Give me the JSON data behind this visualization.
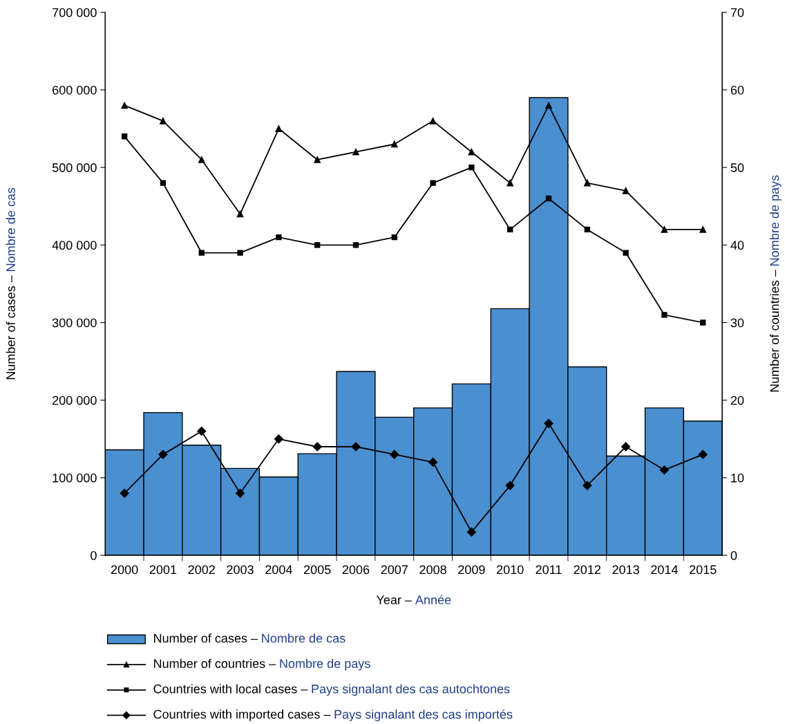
{
  "chart_data": {
    "type": "bar",
    "xlabel": "Year – Année",
    "ylabel": "Number of cases – Nombre de cas",
    "y2label": "Number of countries – Nombre de pays",
    "categories": [
      "2000",
      "2001",
      "2002",
      "2003",
      "2004",
      "2005",
      "2006",
      "2007",
      "2008",
      "2009",
      "2010",
      "2011",
      "2012",
      "2013",
      "2014",
      "2015"
    ],
    "series": [
      {
        "name": "Number of cases – Nombre de cas",
        "color": "#4a8fd0",
        "values": [
          136000,
          184000,
          142000,
          112000,
          101000,
          131000,
          237000,
          178000,
          190000,
          221000,
          318000,
          590000,
          243000,
          128000,
          190000,
          173000
        ]
      },
      {
        "name": "Number of countries – Nombre de pays",
        "type": "line",
        "axis": "y2",
        "color": "#000000",
        "marker": "triangle",
        "values": [
          58,
          56,
          51,
          44,
          55,
          51,
          52,
          53,
          56,
          52,
          48,
          58,
          48,
          47,
          42,
          42
        ]
      },
      {
        "name": "Countries with local cases – Pays signalant des cas autochtones",
        "type": "line",
        "axis": "y2",
        "color": "#000000",
        "marker": "square",
        "values": [
          54,
          48,
          39,
          39,
          41,
          40,
          40,
          41,
          48,
          50,
          42,
          46,
          42,
          39,
          31,
          30
        ]
      },
      {
        "name": "Countries with imported cases – Pays signalant des cas importés",
        "type": "line",
        "axis": "y2",
        "color": "#000000",
        "marker": "diamond",
        "values": [
          8,
          13,
          16,
          8,
          15,
          14,
          14,
          13,
          12,
          3,
          9,
          17,
          9,
          14,
          11,
          13
        ]
      }
    ],
    "ylim": [
      0,
      700000
    ],
    "yticks": [
      {
        "value": 0,
        "label": "0"
      },
      {
        "value": 100000,
        "label": "100 000"
      },
      {
        "value": 200000,
        "label": "200 000"
      },
      {
        "value": 300000,
        "label": "300 000"
      },
      {
        "value": 400000,
        "label": "400 000"
      },
      {
        "value": 500000,
        "label": "500 000"
      },
      {
        "value": 600000,
        "label": "600 000"
      },
      {
        "value": 700000,
        "label": "700 000"
      }
    ],
    "y2lim": [
      0,
      70
    ],
    "y2ticks": [
      0,
      10,
      20,
      30,
      40,
      50,
      60,
      70
    ],
    "legend": "bottom",
    "grid": false,
    "line_style": "solid"
  }
}
